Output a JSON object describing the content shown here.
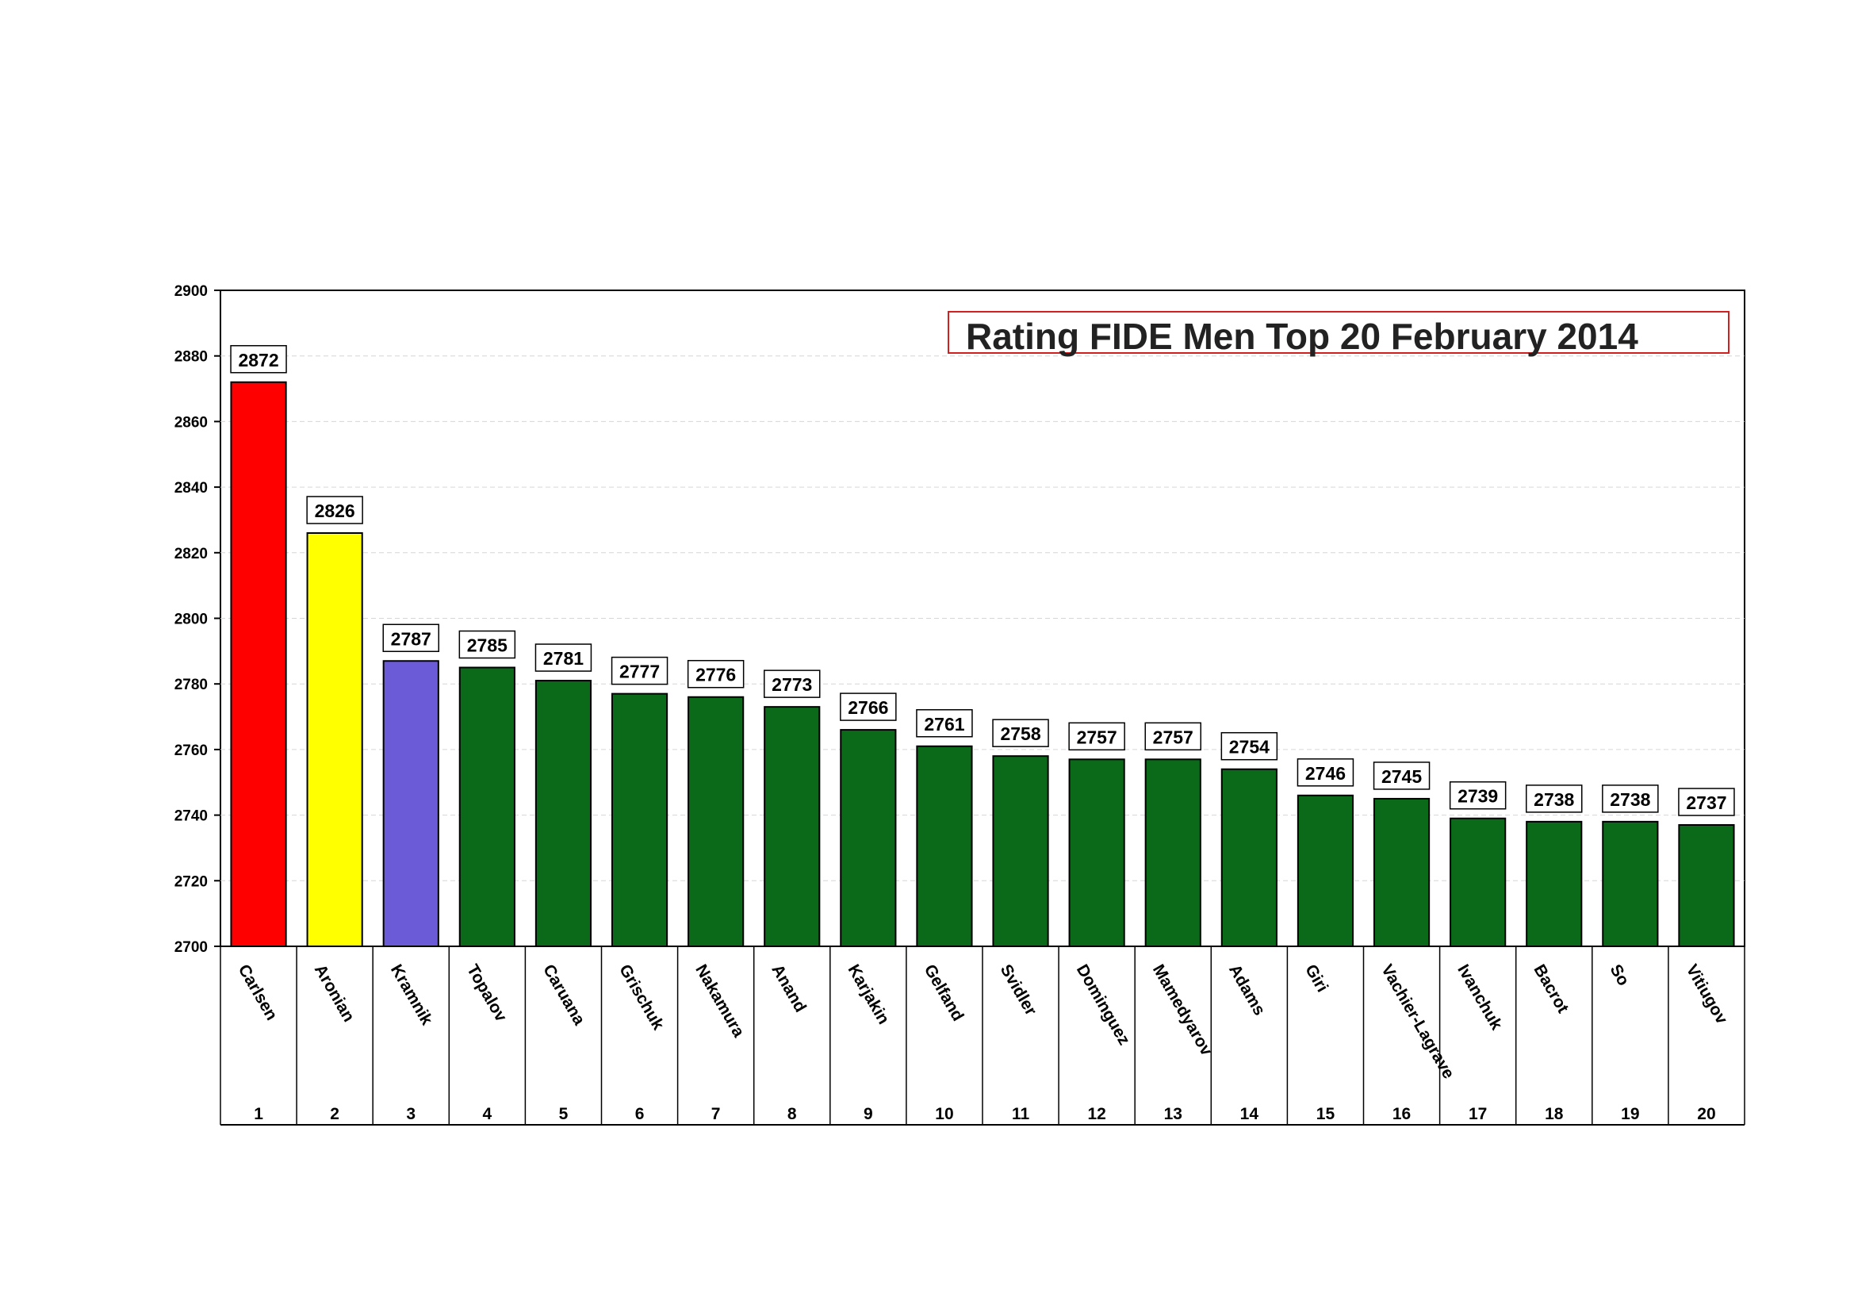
{
  "chart_data": {
    "type": "bar",
    "title": "Rating FIDE Men Top 20 February 2014",
    "xlabel": "",
    "ylabel": "",
    "ylim": [
      2700,
      2900
    ],
    "yticks": [
      2700,
      2720,
      2740,
      2760,
      2780,
      2800,
      2820,
      2840,
      2860,
      2880,
      2900
    ],
    "grid": true,
    "legend": "none",
    "ranks": [
      "1",
      "2",
      "3",
      "4",
      "5",
      "6",
      "7",
      "8",
      "9",
      "10",
      "11",
      "12",
      "13",
      "14",
      "15",
      "16",
      "17",
      "18",
      "19",
      "20"
    ],
    "categories": [
      "Carlsen",
      "Aronian",
      "Kramnik",
      "Topalov",
      "Caruana",
      "Grischuk",
      "Nakamura",
      "Anand",
      "Karjakin",
      "Gelfand",
      "Svidler",
      "Dominguez",
      "Mamedyarov",
      "Adams",
      "Giri",
      "Vachier-Lagrave",
      "Ivanchuk",
      "Bacrot",
      "So",
      "Vitiugov"
    ],
    "values": [
      2872,
      2826,
      2787,
      2785,
      2781,
      2777,
      2776,
      2773,
      2766,
      2761,
      2758,
      2757,
      2757,
      2754,
      2746,
      2745,
      2739,
      2738,
      2738,
      2737
    ],
    "colors": [
      "#ff0000",
      "#ffff00",
      "#6b5bd6",
      "#0a6a1a",
      "#0a6a1a",
      "#0a6a1a",
      "#0a6a1a",
      "#0a6a1a",
      "#0a6a1a",
      "#0a6a1a",
      "#0a6a1a",
      "#0a6a1a",
      "#0a6a1a",
      "#0a6a1a",
      "#0a6a1a",
      "#0a6a1a",
      "#0a6a1a",
      "#0a6a1a",
      "#0a6a1a",
      "#0a6a1a"
    ],
    "title_border_color": "#d22020"
  }
}
